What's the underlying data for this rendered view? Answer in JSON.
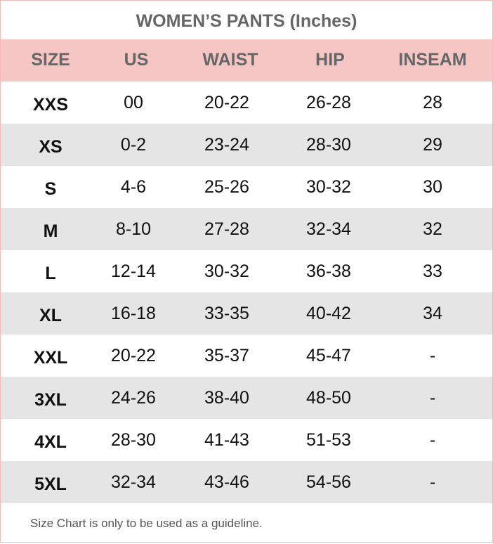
{
  "title": "WOMEN’S PANTS (Inches)",
  "columns": [
    "SIZE",
    "US",
    "WAIST",
    "HIP",
    "INSEAM"
  ],
  "rows": [
    [
      "XXS",
      "00",
      "20-22",
      "26-28",
      "28"
    ],
    [
      "XS",
      "0-2",
      "23-24",
      "28-30",
      "29"
    ],
    [
      "S",
      "4-6",
      "25-26",
      "30-32",
      "30"
    ],
    [
      "M",
      "8-10",
      "27-28",
      "32-34",
      "32"
    ],
    [
      "L",
      "12-14",
      "30-32",
      "36-38",
      "33"
    ],
    [
      "XL",
      "16-18",
      "33-35",
      "40-42",
      "34"
    ],
    [
      "XXL",
      "20-22",
      "35-37",
      "45-47",
      "-"
    ],
    [
      "3XL",
      "24-26",
      "38-40",
      "48-50",
      "-"
    ],
    [
      "4XL",
      "28-30",
      "41-43",
      "51-53",
      "-"
    ],
    [
      "5XL",
      "32-34",
      "43-46",
      "54-56",
      "-"
    ]
  ],
  "footnote": "Size Chart is only to be used as a guideline.",
  "colors": {
    "header_bg": "#f6c6c5",
    "stripe_bg": "#e5e5e5",
    "border": "#f4b9b9",
    "header_text": "#666666"
  }
}
